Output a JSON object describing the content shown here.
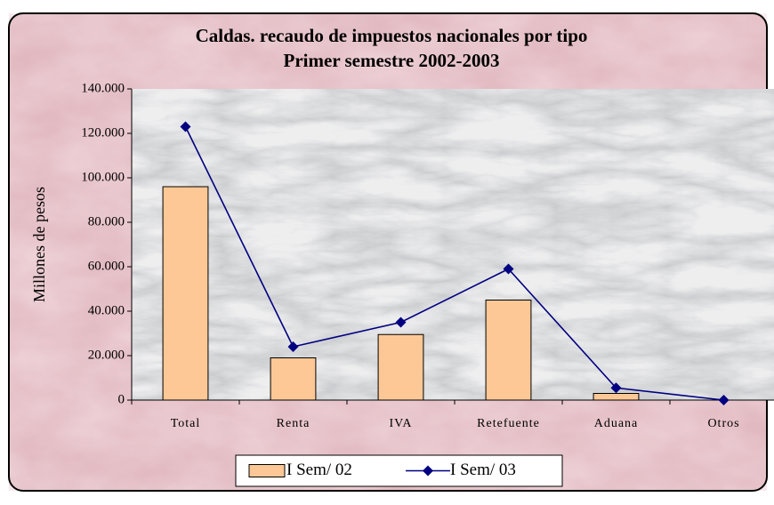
{
  "chart_data": {
    "type": "bar-line",
    "title": "Caldas. recaudo de impuestos nacionales por tipo",
    "subtitle": "Primer semestre 2002-2003",
    "y_label": "Millones de pesos",
    "categories": [
      "Total",
      "Renta",
      "IVA",
      "Retefuente",
      "Aduana",
      "Otros"
    ],
    "series": [
      {
        "name": "I Sem/ 02",
        "type": "bar",
        "color": "#fdc895",
        "values": [
          96000,
          19000,
          29500,
          45000,
          3000,
          0
        ]
      },
      {
        "name": "I Sem/ 03",
        "type": "line",
        "color": "#000080",
        "values": [
          123000,
          24000,
          35000,
          59000,
          5500,
          0
        ]
      }
    ],
    "ylim": [
      0,
      140000
    ],
    "yticks": [
      0,
      {
        "value": 20000,
        "label": "20.000"
      },
      {
        "value": 40000,
        "label": "40.000"
      },
      {
        "value": 60000,
        "label": "60.000"
      },
      {
        "value": 80000,
        "label": "80.000"
      },
      {
        "value": 100000,
        "label": "100.000"
      },
      {
        "value": 120000,
        "label": "120.000"
      },
      {
        "value": 140000,
        "label": "140.000"
      }
    ],
    "legend": "bottom"
  }
}
